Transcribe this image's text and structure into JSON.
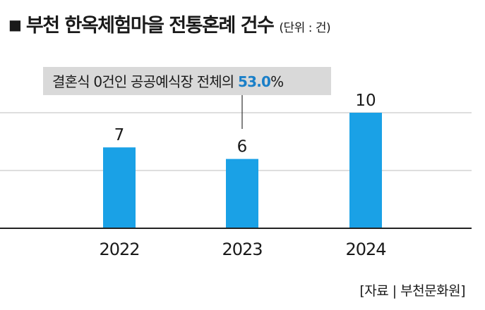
{
  "header": {
    "mark": "■",
    "title": "부천 한옥체험마을 전통혼례 건수",
    "unit": "(단위 : 건)"
  },
  "chart_data": {
    "type": "bar",
    "categories": [
      "2022",
      "2023",
      "2024"
    ],
    "values": [
      7,
      6,
      10
    ],
    "data_labels": [
      "7",
      "6",
      "10"
    ],
    "title": "부천 한옥체험마을 전통혼례 건수",
    "unit": "(단위 : 건)",
    "ylim": [
      0,
      10
    ],
    "grid": true,
    "bar_color": "#1aa1e6",
    "annotation": {
      "target_category": "2023",
      "text_prefix": "결혼식 0건인 공공예식장 전체의 ",
      "highlight": "53.0",
      "suffix": "%",
      "highlight_color": "#1a7fc8"
    }
  },
  "footer": {
    "source": "[자료 | 부천문화원]"
  }
}
